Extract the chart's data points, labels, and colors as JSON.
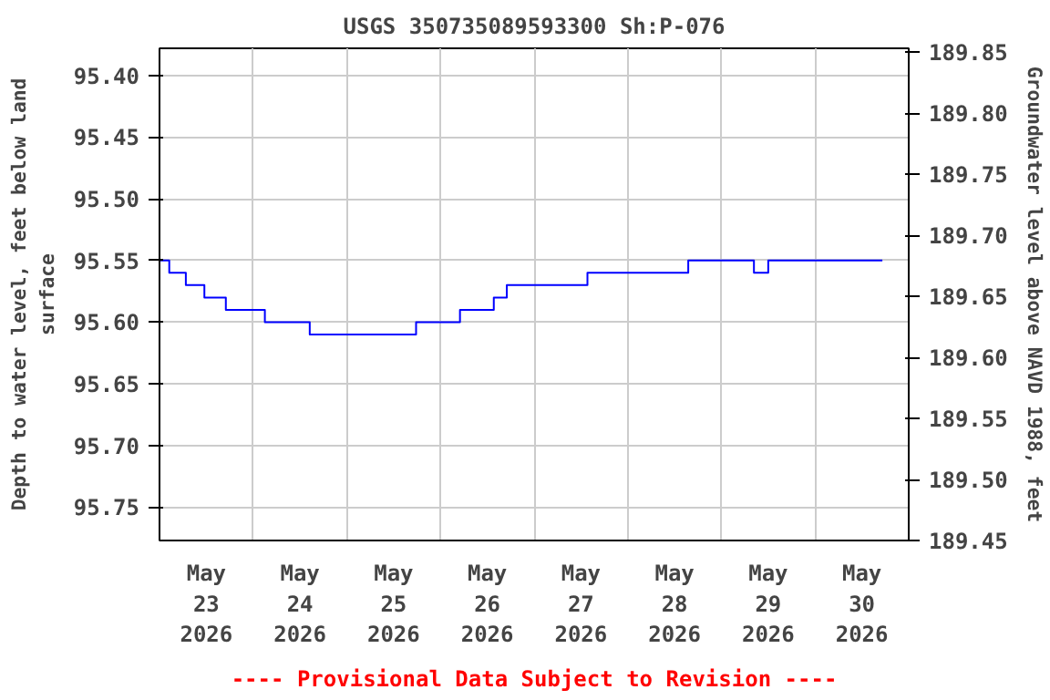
{
  "chart_data": {
    "type": "step",
    "title": "USGS 350735089593300 Sh:P-076",
    "ylabel": "Depth to water level, feet below land\nsurface",
    "y2label": "Groundwater level above NAVD 1988, feet",
    "annotations": [
      "---- Provisional Data Subject to Revision ----"
    ],
    "series": [
      {
        "color": "#0000ff",
        "x": [
          "2026-05-23T00:00",
          "2026-05-23T02:30",
          "2026-05-23T06:45",
          "2026-05-23T11:30",
          "2026-05-23T17:00",
          "2026-05-24T03:00",
          "2026-05-24T14:30",
          "2026-05-25T17:45",
          "2026-05-26T05:00",
          "2026-05-26T13:40",
          "2026-05-26T17:00",
          "2026-05-27T13:40",
          "2026-05-28T15:30",
          "2026-05-29T08:20",
          "2026-05-29T12:00",
          "2026-05-30T17:15"
        ],
        "values": [
          95.55,
          95.56,
          95.57,
          95.58,
          95.59,
          95.6,
          95.61,
          95.6,
          95.59,
          95.58,
          95.57,
          95.56,
          95.55,
          95.56,
          95.55,
          95.55
        ]
      }
    ],
    "xlim": [
      "2026-05-23T00:00",
      "2026-05-31T00:00"
    ],
    "xticks": [
      {
        "value": "2026-05-23T12:00",
        "label": "May\n23\n2026"
      },
      {
        "value": "2026-05-24T12:00",
        "label": "May\n24\n2026"
      },
      {
        "value": "2026-05-25T12:00",
        "label": "May\n25\n2026"
      },
      {
        "value": "2026-05-26T12:00",
        "label": "May\n26\n2026"
      },
      {
        "value": "2026-05-27T12:00",
        "label": "May\n27\n2026"
      },
      {
        "value": "2026-05-28T12:00",
        "label": "May\n28\n2026"
      },
      {
        "value": "2026-05-29T12:00",
        "label": "May\n29\n2026"
      },
      {
        "value": "2026-05-30T12:00",
        "label": "May\n30\n2026"
      },
      {
        "value": "2026-05-24T00:00",
        "label": null
      },
      {
        "value": "2026-05-25T00:00",
        "label": null
      },
      {
        "value": "2026-05-26T00:00",
        "label": null
      },
      {
        "value": "2026-05-27T00:00",
        "label": null
      },
      {
        "value": "2026-05-28T00:00",
        "label": null
      },
      {
        "value": "2026-05-29T00:00",
        "label": null
      },
      {
        "value": "2026-05-30T00:00",
        "label": null
      }
    ],
    "ylim": [
      95.777,
      95.378
    ],
    "yticks": [
      {
        "value": 95.4,
        "label": "95.40"
      },
      {
        "value": 95.45,
        "label": "95.45"
      },
      {
        "value": 95.5,
        "label": "95.50"
      },
      {
        "value": 95.55,
        "label": "95.55"
      },
      {
        "value": 95.6,
        "label": "95.60"
      },
      {
        "value": 95.65,
        "label": "95.65"
      },
      {
        "value": 95.7,
        "label": "95.70"
      },
      {
        "value": 95.75,
        "label": "95.75"
      }
    ],
    "y2lim": [
      189.45,
      189.853
    ],
    "y2ticks": [
      {
        "value": 189.45,
        "label": "189.45"
      },
      {
        "value": 189.5,
        "label": "189.50"
      },
      {
        "value": 189.55,
        "label": "189.55"
      },
      {
        "value": 189.6,
        "label": "189.60"
      },
      {
        "value": 189.65,
        "label": "189.65"
      },
      {
        "value": 189.7,
        "label": "189.70"
      },
      {
        "value": 189.75,
        "label": "189.75"
      },
      {
        "value": 189.8,
        "label": "189.80"
      },
      {
        "value": 189.85,
        "label": "189.85"
      }
    ],
    "grid": true,
    "line_style": "solid"
  }
}
